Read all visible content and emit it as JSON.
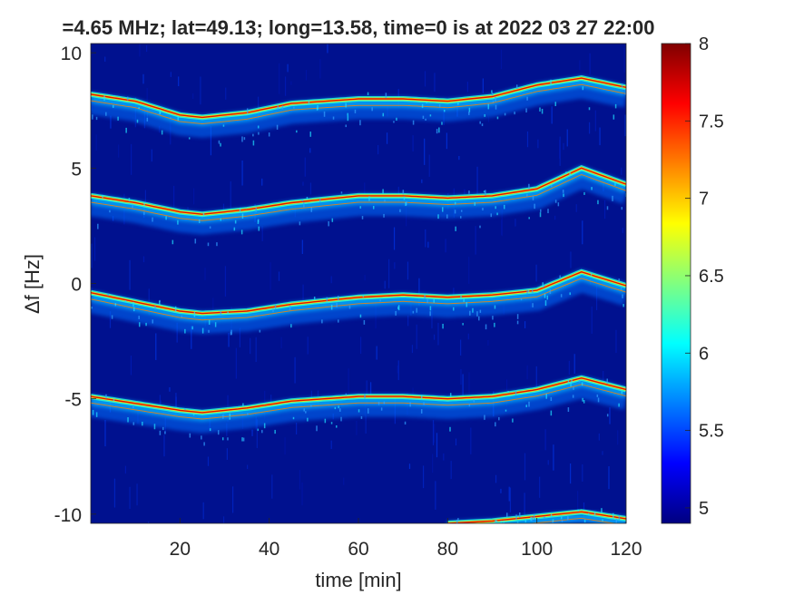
{
  "chart_data": {
    "type": "heatmap",
    "title": "=4.65 MHz;  lat=49.13; long=13.58, time=0 is at 2022 03 27 22:00",
    "xlabel": "time [min]",
    "ylabel": "Δf [Hz]",
    "xlim": [
      0,
      120
    ],
    "ylim": [
      -10.4,
      10.4
    ],
    "xticks": [
      20,
      40,
      60,
      80,
      100,
      120
    ],
    "yticks": [
      10,
      5,
      0,
      -5,
      -10
    ],
    "ytick_labels": [
      "10",
      "5",
      "0",
      "-5",
      "-10"
    ],
    "grid": false,
    "colormap": "jet",
    "background_color": "#00118f",
    "colorbar": {
      "range": [
        4.9,
        8.0
      ],
      "ticks": [
        8,
        7.5,
        7,
        6.5,
        6,
        5.5,
        5
      ],
      "tick_labels": [
        "8",
        "7.5",
        "7",
        "6.5",
        "6",
        "5.5",
        "5"
      ]
    },
    "series": [
      {
        "offset_hz": 8.2,
        "x": [
          0,
          10,
          20,
          25,
          35,
          45,
          60,
          70,
          80,
          90,
          100,
          110,
          120
        ],
        "y": [
          8.2,
          7.9,
          7.3,
          7.2,
          7.4,
          7.8,
          8.0,
          8.0,
          7.9,
          8.1,
          8.6,
          8.9,
          8.5
        ]
      },
      {
        "offset_hz": 3.8,
        "x": [
          0,
          10,
          20,
          25,
          35,
          45,
          60,
          70,
          80,
          90,
          100,
          110,
          120
        ],
        "y": [
          3.8,
          3.5,
          3.1,
          3.0,
          3.2,
          3.5,
          3.8,
          3.8,
          3.7,
          3.8,
          4.1,
          5.0,
          4.3
        ]
      },
      {
        "offset_hz": -0.4,
        "x": [
          0,
          10,
          20,
          25,
          35,
          45,
          60,
          70,
          80,
          90,
          100,
          110,
          120
        ],
        "y": [
          -0.4,
          -0.8,
          -1.2,
          -1.3,
          -1.2,
          -0.9,
          -0.6,
          -0.5,
          -0.6,
          -0.5,
          -0.3,
          0.5,
          -0.1
        ]
      },
      {
        "offset_hz": -4.9,
        "x": [
          0,
          10,
          20,
          25,
          35,
          45,
          60,
          70,
          80,
          90,
          100,
          110,
          120
        ],
        "y": [
          -4.9,
          -5.2,
          -5.5,
          -5.6,
          -5.4,
          -5.1,
          -4.9,
          -4.9,
          -5.0,
          -4.9,
          -4.6,
          -4.1,
          -4.6
        ]
      },
      {
        "offset_hz": -10.3,
        "x": [
          80,
          90,
          100,
          110,
          120
        ],
        "y": [
          -10.4,
          -10.3,
          -10.1,
          -9.9,
          -10.2
        ]
      }
    ]
  }
}
